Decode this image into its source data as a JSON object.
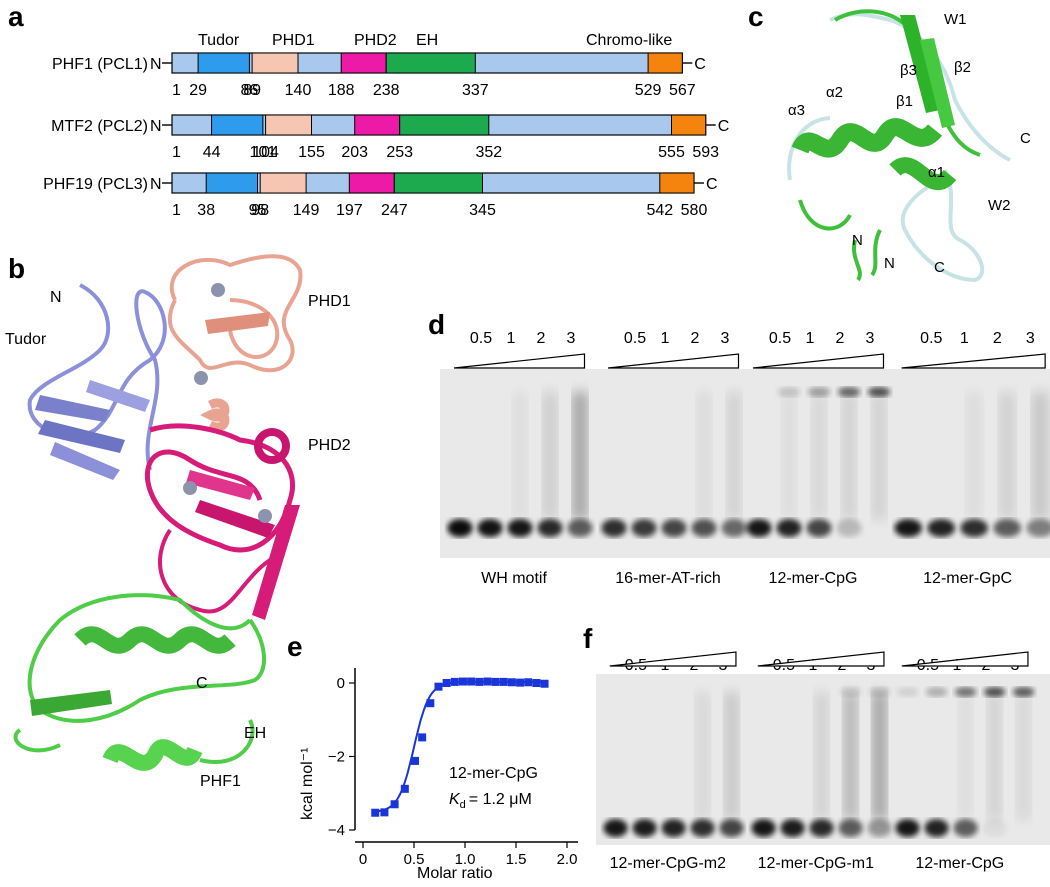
{
  "panels": {
    "a": "a",
    "b": "b",
    "c": "c",
    "d": "d",
    "e": "e",
    "f": "f"
  },
  "domain_labels": [
    "Tudor",
    "PHD1",
    "PHD2",
    "EH",
    "Chromo-like"
  ],
  "colors": {
    "base": "#a9c8ee",
    "tudor": "#2e9bec",
    "phd1": "#f7c6b3",
    "phd2": "#ec1aa6",
    "eh": "#1daa4e",
    "chromo": "#f5840f",
    "tudor_struct": "#8b90d8",
    "phd1_struct": "#e9a393",
    "phd2_struct": "#d61c78",
    "phf1_struct": "#4fcc48",
    "alt_struct": "#c7e3e6",
    "zinc": "#8c93ad",
    "itc": "#1a35d8"
  },
  "proteins": [
    {
      "name": "PHF1 (PCL1)",
      "n": "N",
      "c": "C",
      "length": 567,
      "domains": [
        {
          "type": "tudor",
          "start": 29,
          "end": 86
        },
        {
          "type": "phd1",
          "start": 89,
          "end": 140
        },
        {
          "type": "phd2",
          "start": 188,
          "end": 238
        },
        {
          "type": "eh",
          "start": 238,
          "end": 337
        },
        {
          "type": "chromo",
          "start": 529,
          "end": 567
        }
      ],
      "ticks": [
        "1",
        "29",
        "86",
        "89",
        "140",
        "188",
        "238",
        "337",
        "529",
        "567"
      ]
    },
    {
      "name": "MTF2 (PCL2)",
      "n": "N",
      "c": "C",
      "length": 593,
      "domains": [
        {
          "type": "tudor",
          "start": 44,
          "end": 101
        },
        {
          "type": "phd1",
          "start": 104,
          "end": 155
        },
        {
          "type": "phd2",
          "start": 203,
          "end": 253
        },
        {
          "type": "eh",
          "start": 253,
          "end": 352
        },
        {
          "type": "chromo",
          "start": 555,
          "end": 593
        }
      ],
      "ticks": [
        "1",
        "44",
        "101",
        "104",
        "155",
        "203",
        "253",
        "352",
        "555",
        "593"
      ]
    },
    {
      "name": "PHF19 (PCL3)",
      "n": "N",
      "c": "C",
      "length": 580,
      "domains": [
        {
          "type": "tudor",
          "start": 38,
          "end": 95
        },
        {
          "type": "phd1",
          "start": 98,
          "end": 149
        },
        {
          "type": "phd2",
          "start": 197,
          "end": 247
        },
        {
          "type": "eh",
          "start": 247,
          "end": 345
        },
        {
          "type": "chromo",
          "start": 542,
          "end": 580
        }
      ],
      "ticks": [
        "1",
        "38",
        "95",
        "98",
        "149",
        "197",
        "247",
        "345",
        "542",
        "580"
      ]
    }
  ],
  "structure_b": {
    "n_term": "N",
    "tudor": "Tudor",
    "phd1": "PHD1",
    "phd2": "PHD2",
    "c_term": "C",
    "eh": "EH",
    "protein": "PHF1"
  },
  "structure_c": {
    "labels": [
      "W1",
      "β3",
      "β2",
      "α2",
      "α3",
      "β1",
      "C",
      "α1",
      "W2",
      "N",
      "N",
      "C"
    ]
  },
  "gel_d": {
    "ratios": [
      "0.5",
      "1",
      "2",
      "3"
    ],
    "lanes": [
      "WH motif",
      "16-mer-AT-rich",
      "12-mer-CpG",
      "12-mer-GpC"
    ]
  },
  "gel_f": {
    "ratios": [
      "0.5",
      "1",
      "2",
      "3"
    ],
    "lanes": [
      "12-mer-CpG-m2",
      "12-mer-CpG-m1",
      "12-mer-CpG"
    ]
  },
  "chart_data": {
    "type": "scatter",
    "title": "",
    "xlabel": "Molar ratio",
    "ylabel": "kcal mol⁻¹",
    "xlim": [
      0,
      2.0
    ],
    "ylim": [
      -4,
      0.3
    ],
    "xticks": [
      "0",
      "0.5",
      "1.0",
      "1.5",
      "2.0"
    ],
    "yticks": [
      "0",
      "−2",
      "−4"
    ],
    "annotation": "12-mer-CpG",
    "kd_symbol": "K",
    "kd_sub": "d",
    "kd_value": "= 1.2 μM",
    "points": [
      {
        "x": 0.12,
        "y": -3.53
      },
      {
        "x": 0.21,
        "y": -3.52
      },
      {
        "x": 0.31,
        "y": -3.3
      },
      {
        "x": 0.41,
        "y": -2.88
      },
      {
        "x": 0.51,
        "y": -2.12
      },
      {
        "x": 0.58,
        "y": -1.48
      },
      {
        "x": 0.66,
        "y": -0.55
      },
      {
        "x": 0.74,
        "y": -0.1
      },
      {
        "x": 0.82,
        "y": 0.0
      },
      {
        "x": 0.9,
        "y": 0.03
      },
      {
        "x": 0.98,
        "y": 0.04
      },
      {
        "x": 1.06,
        "y": 0.04
      },
      {
        "x": 1.14,
        "y": 0.03
      },
      {
        "x": 1.22,
        "y": 0.04
      },
      {
        "x": 1.3,
        "y": 0.03
      },
      {
        "x": 1.38,
        "y": 0.03
      },
      {
        "x": 1.46,
        "y": 0.02
      },
      {
        "x": 1.54,
        "y": 0.01
      },
      {
        "x": 1.62,
        "y": 0.02
      },
      {
        "x": 1.7,
        "y": 0.0
      },
      {
        "x": 1.78,
        "y": -0.02
      }
    ]
  }
}
